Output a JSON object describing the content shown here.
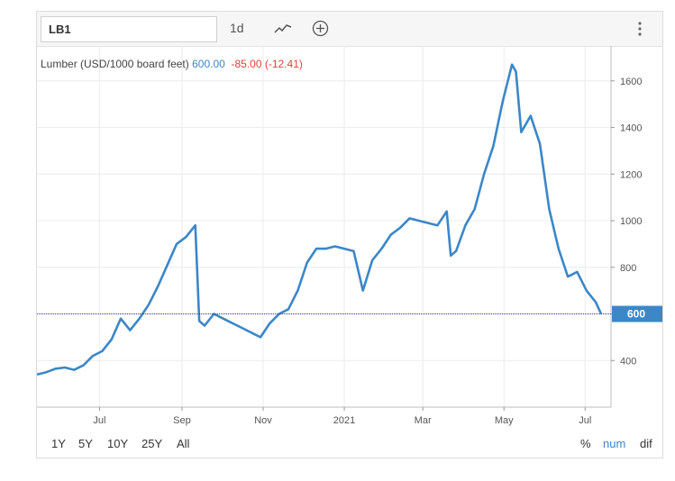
{
  "toolbar": {
    "symbol_value": "LB1",
    "period_label": "1d",
    "line_icon": "trend-line-icon",
    "add_icon": "add-circle-icon",
    "menu_icon": "vertical-dots-icon"
  },
  "legend": {
    "name": "Lumber (USD/1000 board feet)",
    "price": "600.00",
    "change": "-85.00 (-12.41)"
  },
  "ranges": [
    "1Y",
    "5Y",
    "10Y",
    "25Y",
    "All"
  ],
  "scale_modes": [
    {
      "label": "%",
      "active": false
    },
    {
      "label": "num",
      "active": true
    },
    {
      "label": "dif",
      "active": false
    }
  ],
  "colors": {
    "line": "#3b87c8",
    "change": "#e0403c",
    "reference": "#3a3a9a"
  },
  "chart_data": {
    "type": "line",
    "x_tick_labels": [
      "Jul",
      "Sep",
      "Nov",
      "2021",
      "Mar",
      "May",
      "Jul"
    ],
    "y_ticks": [
      400,
      600,
      800,
      1000,
      1200,
      1400,
      1600
    ],
    "ylim": [
      200,
      1750
    ],
    "current_value": 600,
    "current_label": "600",
    "series": [
      {
        "x": [
          "2020-05-15",
          "2020-05-22",
          "2020-05-29",
          "2020-06-05",
          "2020-06-12",
          "2020-06-19",
          "2020-06-26",
          "2020-07-03",
          "2020-07-10",
          "2020-07-17",
          "2020-07-24",
          "2020-07-31",
          "2020-08-07",
          "2020-08-14",
          "2020-08-21",
          "2020-08-28",
          "2020-09-04",
          "2020-09-11",
          "2020-09-14",
          "2020-09-18",
          "2020-09-25",
          "2020-10-02",
          "2020-10-09",
          "2020-10-16",
          "2020-10-23",
          "2020-10-30",
          "2020-11-06",
          "2020-11-13",
          "2020-11-20",
          "2020-11-27",
          "2020-12-04",
          "2020-12-11",
          "2020-12-18",
          "2020-12-25",
          "2021-01-01",
          "2021-01-08",
          "2021-01-15",
          "2021-01-22",
          "2021-01-29",
          "2021-02-05",
          "2021-02-12",
          "2021-02-19",
          "2021-02-26",
          "2021-03-05",
          "2021-03-12",
          "2021-03-19",
          "2021-03-22",
          "2021-03-26",
          "2021-04-02",
          "2021-04-09",
          "2021-04-16",
          "2021-04-23",
          "2021-04-30",
          "2021-05-07",
          "2021-05-10",
          "2021-05-14",
          "2021-05-21",
          "2021-05-28",
          "2021-06-04",
          "2021-06-11",
          "2021-06-18",
          "2021-06-25",
          "2021-07-02",
          "2021-07-09",
          "2021-07-13"
        ],
        "values": [
          340,
          350,
          365,
          370,
          360,
          380,
          420,
          440,
          490,
          580,
          530,
          580,
          640,
          720,
          810,
          900,
          930,
          980,
          570,
          550,
          600,
          580,
          560,
          540,
          520,
          500,
          560,
          600,
          620,
          700,
          820,
          880,
          880,
          890,
          880,
          870,
          700,
          830,
          880,
          940,
          970,
          1010,
          1000,
          990,
          980,
          1040,
          850,
          870,
          980,
          1050,
          1200,
          1320,
          1510,
          1670,
          1640,
          1380,
          1450,
          1330,
          1050,
          880,
          760,
          780,
          700,
          650,
          600
        ]
      }
    ]
  }
}
